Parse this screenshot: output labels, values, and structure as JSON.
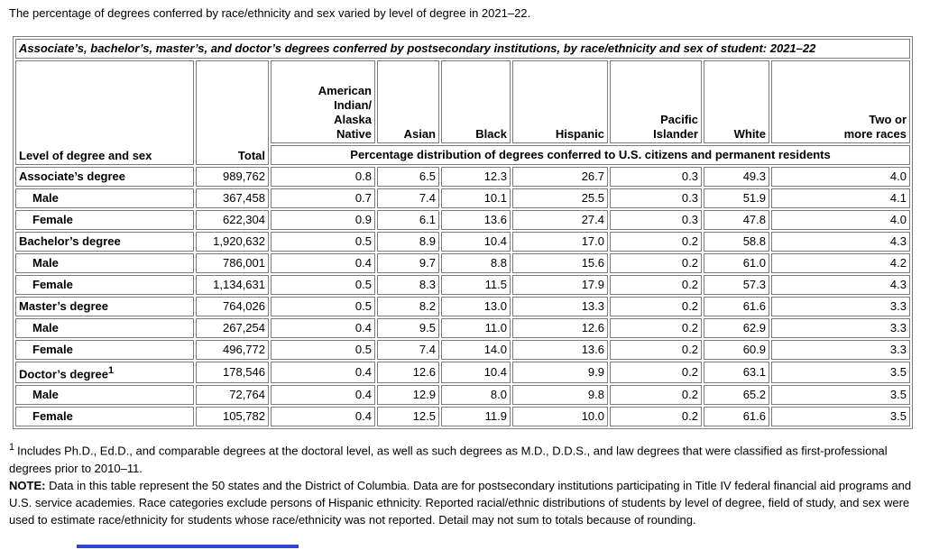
{
  "intro": "The percentage of degrees conferred by race/ethnicity and sex varied by level of degree in 2021–22.",
  "table": {
    "title": "Associate’s, bachelor’s, master’s, and doctor’s degrees conferred by postsecondary institutions, by race/ethnicity and sex of student: 2021–22",
    "col_header_left": "Level of degree and sex",
    "col_header_total": "Total",
    "race_headers": [
      "American\nIndian/\nAlaska\nNative",
      "Asian",
      "Black",
      "Hispanic",
      "Pacific\nIslander",
      "White",
      "Two or\nmore races"
    ],
    "span_header": "Percentage distribution of degrees conferred to U.S. citizens and permanent residents",
    "rows": [
      {
        "label": "Associate’s degree",
        "sup": "",
        "indent": false,
        "total": "989,762",
        "values": [
          "0.8",
          "6.5",
          "12.3",
          "26.7",
          "0.3",
          "49.3",
          "4.0"
        ]
      },
      {
        "label": "Male",
        "sup": "",
        "indent": true,
        "total": "367,458",
        "values": [
          "0.7",
          "7.4",
          "10.1",
          "25.5",
          "0.3",
          "51.9",
          "4.1"
        ]
      },
      {
        "label": "Female",
        "sup": "",
        "indent": true,
        "total": "622,304",
        "values": [
          "0.9",
          "6.1",
          "13.6",
          "27.4",
          "0.3",
          "47.8",
          "4.0"
        ]
      },
      {
        "label": "Bachelor’s degree",
        "sup": "",
        "indent": false,
        "total": "1,920,632",
        "values": [
          "0.5",
          "8.9",
          "10.4",
          "17.0",
          "0.2",
          "58.8",
          "4.3"
        ]
      },
      {
        "label": "Male",
        "sup": "",
        "indent": true,
        "total": "786,001",
        "values": [
          "0.4",
          "9.7",
          "8.8",
          "15.6",
          "0.2",
          "61.0",
          "4.2"
        ]
      },
      {
        "label": "Female",
        "sup": "",
        "indent": true,
        "total": "1,134,631",
        "values": [
          "0.5",
          "8.3",
          "11.5",
          "17.9",
          "0.2",
          "57.3",
          "4.3"
        ]
      },
      {
        "label": "Master’s degree",
        "sup": "",
        "indent": false,
        "total": "764,026",
        "values": [
          "0.5",
          "8.2",
          "13.0",
          "13.3",
          "0.2",
          "61.6",
          "3.3"
        ]
      },
      {
        "label": "Male",
        "sup": "",
        "indent": true,
        "total": "267,254",
        "values": [
          "0.4",
          "9.5",
          "11.0",
          "12.6",
          "0.2",
          "62.9",
          "3.3"
        ]
      },
      {
        "label": "Female",
        "sup": "",
        "indent": true,
        "total": "496,772",
        "values": [
          "0.5",
          "7.4",
          "14.0",
          "13.6",
          "0.2",
          "60.9",
          "3.3"
        ]
      },
      {
        "label": "Doctor’s degree",
        "sup": "1",
        "indent": false,
        "total": "178,546",
        "values": [
          "0.4",
          "12.6",
          "10.4",
          "9.9",
          "0.2",
          "63.1",
          "3.5"
        ]
      },
      {
        "label": "Male",
        "sup": "",
        "indent": true,
        "total": "72,764",
        "values": [
          "0.4",
          "12.9",
          "8.0",
          "9.8",
          "0.2",
          "65.2",
          "3.5"
        ]
      },
      {
        "label": "Female",
        "sup": "",
        "indent": true,
        "total": "105,782",
        "values": [
          "0.4",
          "12.5",
          "11.9",
          "10.0",
          "0.2",
          "61.6",
          "3.5"
        ]
      }
    ]
  },
  "footnotes": {
    "fn1_sup": "1",
    "fn1_text": "Includes Ph.D., Ed.D., and comparable degrees at the doctoral level, as well as such degrees as M.D., D.D.S., and law degrees that were classified as first-professional degrees prior to 2010–11.",
    "note_label": "NOTE:",
    "note_text": "Data in this table represent the 50 states and the District of Columbia. Data are for postsecondary institutions participating in Title IV federal financial aid programs and U.S. service academies. Race categories exclude persons of Hispanic ethnicity. Reported racial/ethnic distributions of students by level of degree, field of study, and sex were used to estimate race/ethnicity for students whose race/ethnicity was not reported. Detail may not sum to totals because of rounding."
  },
  "colors": {
    "table_border": "#7b7b7b",
    "text": "#000000",
    "bottom_bar_blue": "#3344cc"
  }
}
